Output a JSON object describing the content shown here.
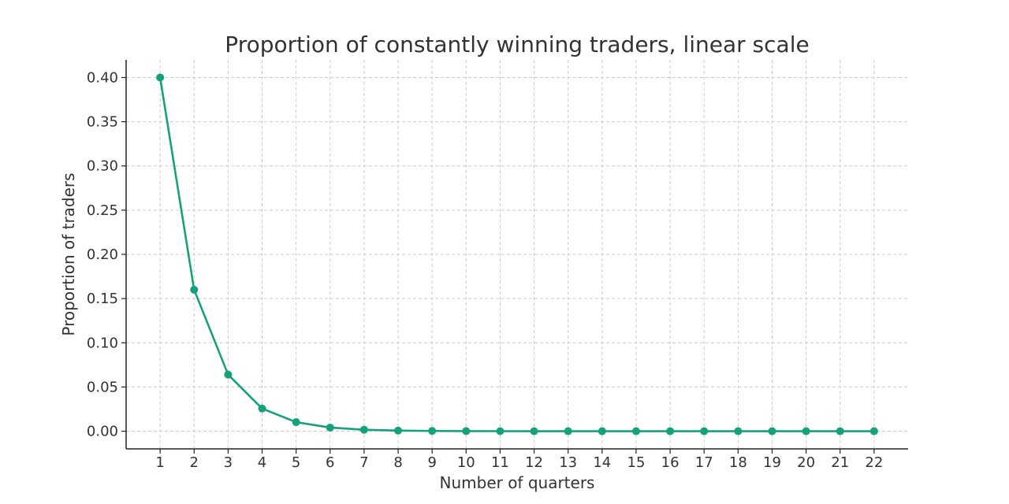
{
  "chart_data": {
    "type": "line",
    "title": "Proportion of constantly winning traders, linear scale",
    "xlabel": "Number of quarters",
    "ylabel": "Proportion of traders",
    "x": [
      1,
      2,
      3,
      4,
      5,
      6,
      7,
      8,
      9,
      10,
      11,
      12,
      13,
      14,
      15,
      16,
      17,
      18,
      19,
      20,
      21,
      22
    ],
    "y_ticks": [
      "0.00",
      "0.05",
      "0.10",
      "0.15",
      "0.20",
      "0.25",
      "0.30",
      "0.35",
      "0.40"
    ],
    "series": [
      {
        "values": [
          0.4,
          0.16,
          0.064,
          0.0256,
          0.01024,
          0.004096,
          0.0016384,
          0.00065536,
          0.000262144,
          0.000104858,
          4.19e-05,
          1.68e-05,
          6.7e-06,
          2.7e-06,
          1.1e-06,
          4e-07,
          2e-07,
          1e-07,
          0.0,
          0.0,
          0.0,
          0.0
        ],
        "color": "#17a07c"
      }
    ],
    "xlim": [
      0,
      23
    ],
    "ylim": [
      -0.02,
      0.42
    ],
    "grid": true
  }
}
